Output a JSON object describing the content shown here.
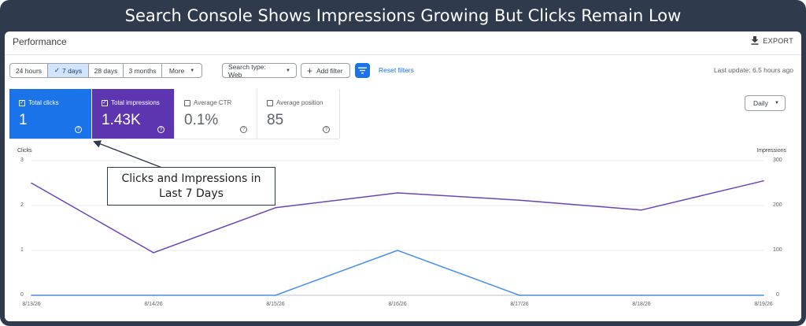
{
  "banner": {
    "title": "Search Console Shows Impressions Growing But Clicks Remain Low"
  },
  "header": {
    "title": "Performance",
    "export_label": "EXPORT"
  },
  "filters": {
    "date_ranges": [
      {
        "label": "24 hours",
        "selected": false
      },
      {
        "label": "7 days",
        "selected": true
      },
      {
        "label": "28 days",
        "selected": false
      },
      {
        "label": "3 months",
        "selected": false
      },
      {
        "label": "More",
        "selected": false
      }
    ],
    "search_type_label": "Search type: Web",
    "add_filter_label": "Add filter",
    "reset_label": "Reset filters",
    "last_update": "Last update: 6.5 hours ago"
  },
  "metric_cards": [
    {
      "label": "Total clicks",
      "value": "1",
      "checked": true,
      "color": "#1a73e8"
    },
    {
      "label": "Total impressions",
      "value": "1.43K",
      "checked": true,
      "color": "#5e35b1"
    },
    {
      "label": "Average CTR",
      "value": "0.1%",
      "checked": false
    },
    {
      "label": "Average position",
      "value": "85",
      "checked": false
    }
  ],
  "granularity": {
    "label": "Daily"
  },
  "callout": {
    "text": "Clicks and Impressions in Last 7 Days"
  },
  "chart_data": {
    "type": "line",
    "x": [
      "8/13/26",
      "8/14/26",
      "8/15/26",
      "8/16/26",
      "8/17/26",
      "8/18/26",
      "8/19/26"
    ],
    "left_axis": {
      "label": "Clicks",
      "ticks": [
        "3",
        "2",
        "1",
        "0"
      ],
      "ylim": [
        0,
        3
      ]
    },
    "right_axis": {
      "label": "Impressions",
      "ticks": [
        "300",
        "200",
        "100",
        "0"
      ],
      "ylim": [
        0,
        300
      ]
    },
    "series": [
      {
        "name": "Total clicks",
        "axis": "left",
        "color": "#4a8fe6",
        "values": [
          0,
          0,
          0,
          1,
          0,
          0,
          0
        ]
      },
      {
        "name": "Total impressions",
        "axis": "right",
        "color": "#6a45b8",
        "values": [
          250,
          95,
          195,
          228,
          212,
          190,
          255
        ]
      }
    ],
    "grid": true
  }
}
